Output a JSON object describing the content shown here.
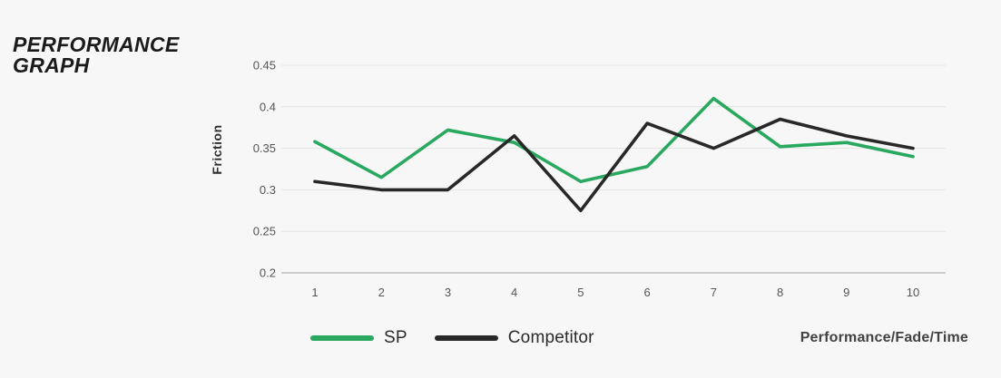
{
  "title": {
    "line1": "PERFORMANCE",
    "line2": "GRAPH"
  },
  "colors": {
    "background": "#f7f7f7",
    "grid": "#e4e4e4",
    "axis_line": "#bdbdbd",
    "tick_text": "#555555",
    "title_text": "#1b1b1b",
    "legend_text": "#2b2b2b",
    "caption_text": "#424242",
    "sp_green": "#2aa85f",
    "competitor_black": "#282828"
  },
  "chart_data": {
    "type": "line",
    "title": "Performance Graph",
    "x": [
      1,
      2,
      3,
      4,
      5,
      6,
      7,
      8,
      9,
      10
    ],
    "xtick_labels": [
      "1",
      "2",
      "3",
      "4",
      "5",
      "6",
      "7",
      "8",
      "9",
      "10"
    ],
    "yticks": [
      0.45,
      0.4,
      0.35,
      0.3,
      0.25,
      0.2
    ],
    "ytick_labels": [
      "0.45",
      "0.4",
      "0.35",
      "0.3",
      "0.25",
      "0.2"
    ],
    "ylim": [
      0.2,
      0.45
    ],
    "ylabel": "Friction",
    "xlabel": "Performance/Fade/Time",
    "grid": true,
    "legend_position": "bottom",
    "series": [
      {
        "name": "SP",
        "color": "#2aa85f",
        "values": [
          0.358,
          0.315,
          0.372,
          0.357,
          0.31,
          0.328,
          0.41,
          0.352,
          0.357,
          0.34
        ]
      },
      {
        "name": "Competitor",
        "color": "#282828",
        "values": [
          0.31,
          0.3,
          0.3,
          0.365,
          0.275,
          0.38,
          0.35,
          0.385,
          0.365,
          0.35
        ]
      }
    ]
  }
}
